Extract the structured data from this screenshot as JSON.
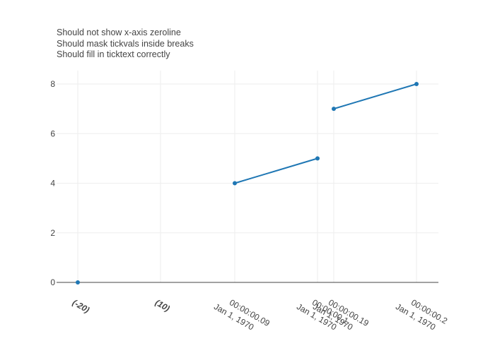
{
  "chart_data": {
    "type": "line",
    "title_lines": [
      "Should not show x-axis zeroline",
      "Should mask tickvals inside breaks",
      "Should fill in ticktext correctly"
    ],
    "xlabel": "",
    "ylabel": "",
    "ylim": [
      0,
      8.5
    ],
    "y_ticks": [
      0,
      2,
      4,
      6,
      8
    ],
    "x_ticks": [
      {
        "lines": [
          "(-20)"
        ],
        "bold": true
      },
      {
        "lines": [
          "(10)"
        ],
        "bold": true
      },
      {
        "lines": [
          "00:00:00.09",
          "Jan 1, 1970"
        ],
        "bold": false
      },
      {
        "lines": [
          "00:00:00.1",
          "Jan 1, 1970"
        ],
        "bold": false
      },
      {
        "lines": [
          "00:00:00.19",
          "Jan 1, 1970"
        ],
        "bold": false
      },
      {
        "lines": [
          "00:00:00.2",
          "Jan 1, 1970"
        ],
        "bold": false
      }
    ],
    "series": [
      {
        "color": "#1f77b4",
        "segments": [
          [
            {
              "x": "(-20)",
              "y": 0
            }
          ],
          [
            {
              "x": "00:00:00.09",
              "y": 4
            },
            {
              "x": "00:00:00.1",
              "y": 5
            }
          ],
          [
            {
              "x": "00:00:00.19",
              "y": 7
            },
            {
              "x": "00:00:00.2",
              "y": 8
            }
          ]
        ]
      }
    ],
    "grid": true,
    "legend": "none",
    "colors": {
      "line": "#1f77b4",
      "grid": "#eeeeee",
      "zeroline": "#444444",
      "text": "#444444"
    }
  }
}
